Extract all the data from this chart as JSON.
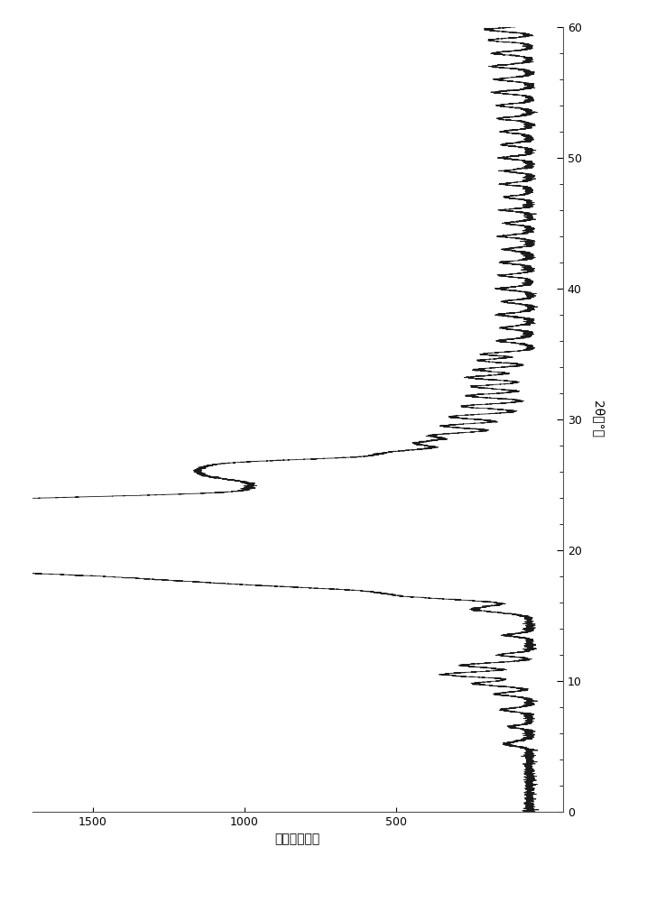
{
  "xlabel": "强度（计数）",
  "ylabel": "2θ（°）",
  "xlim": [
    1700,
    -50
  ],
  "ylim": [
    0,
    60
  ],
  "xticks": [
    1500,
    1000,
    500
  ],
  "yticks": [
    0,
    10,
    20,
    30,
    40,
    50,
    60
  ],
  "line_color": "#1a1a1a",
  "background_color": "#ffffff",
  "line_width": 0.6,
  "figsize": [
    7.17,
    10.0
  ],
  "dpi": 100
}
